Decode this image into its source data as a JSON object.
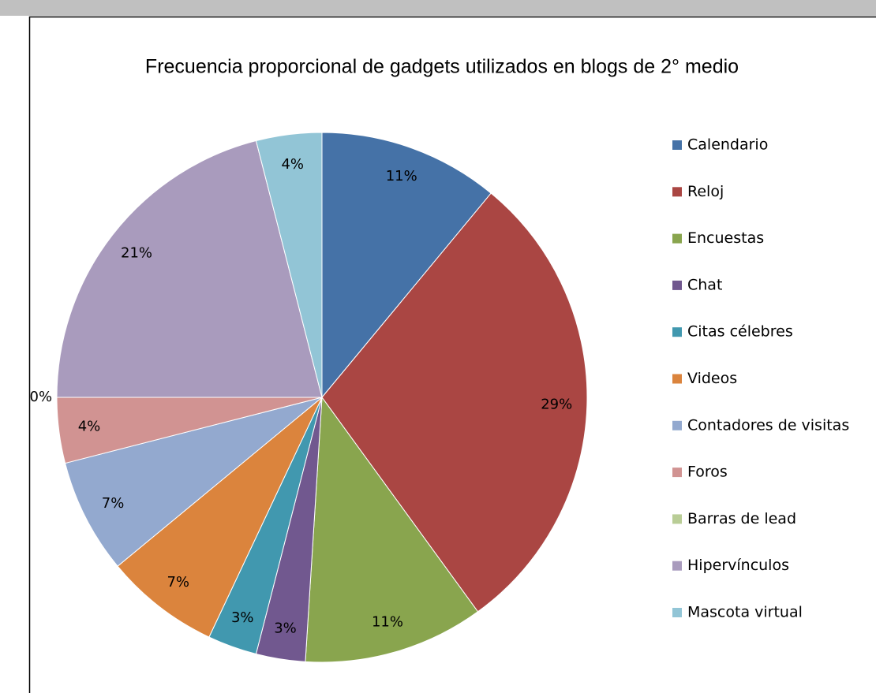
{
  "chart_data": {
    "type": "pie",
    "title": "Frecuencia proporcional de gadgets utilizados en blogs de 2° medio",
    "categories": [
      "Calendario",
      "Reloj",
      "Encuestas",
      "Chat",
      "Citas célebres",
      "Videos",
      "Contadores de visitas",
      "Foros",
      "Barras de lead",
      "Hipervínculos",
      "Mascota virtual"
    ],
    "values": [
      11,
      29,
      11,
      3,
      3,
      7,
      7,
      4,
      0,
      21,
      4
    ],
    "value_labels": [
      "11%",
      "29%",
      "11%",
      "3%",
      "3%",
      "7%",
      "7%",
      "4%",
      "0%",
      "21%",
      "4%"
    ],
    "colors": [
      "#4572a7",
      "#aa4643",
      "#89a54e",
      "#71588f",
      "#4198af",
      "#db843d",
      "#93a9cf",
      "#d19392",
      "#b9cd96",
      "#a99bbd",
      "#92c5d6"
    ],
    "legend": "right"
  }
}
